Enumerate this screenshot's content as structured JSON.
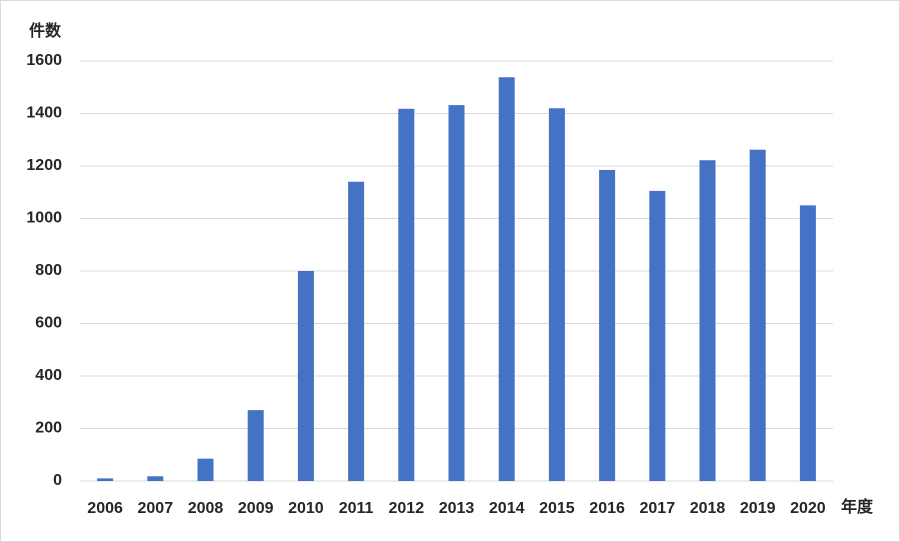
{
  "chart_data": {
    "type": "bar",
    "y_label": "件数",
    "x_label": "年度",
    "categories": [
      "2006",
      "2007",
      "2008",
      "2009",
      "2010",
      "2011",
      "2012",
      "2013",
      "2014",
      "2015",
      "2016",
      "2017",
      "2018",
      "2019",
      "2020"
    ],
    "values": [
      10,
      18,
      85,
      270,
      800,
      1140,
      1418,
      1432,
      1538,
      1420,
      1185,
      1105,
      1222,
      1262,
      1050
    ],
    "color": "#4472c4",
    "ylim": [
      0,
      1600
    ],
    "yticks": [
      0,
      200,
      400,
      600,
      800,
      1000,
      1200,
      1400,
      1600
    ],
    "grid": true
  }
}
